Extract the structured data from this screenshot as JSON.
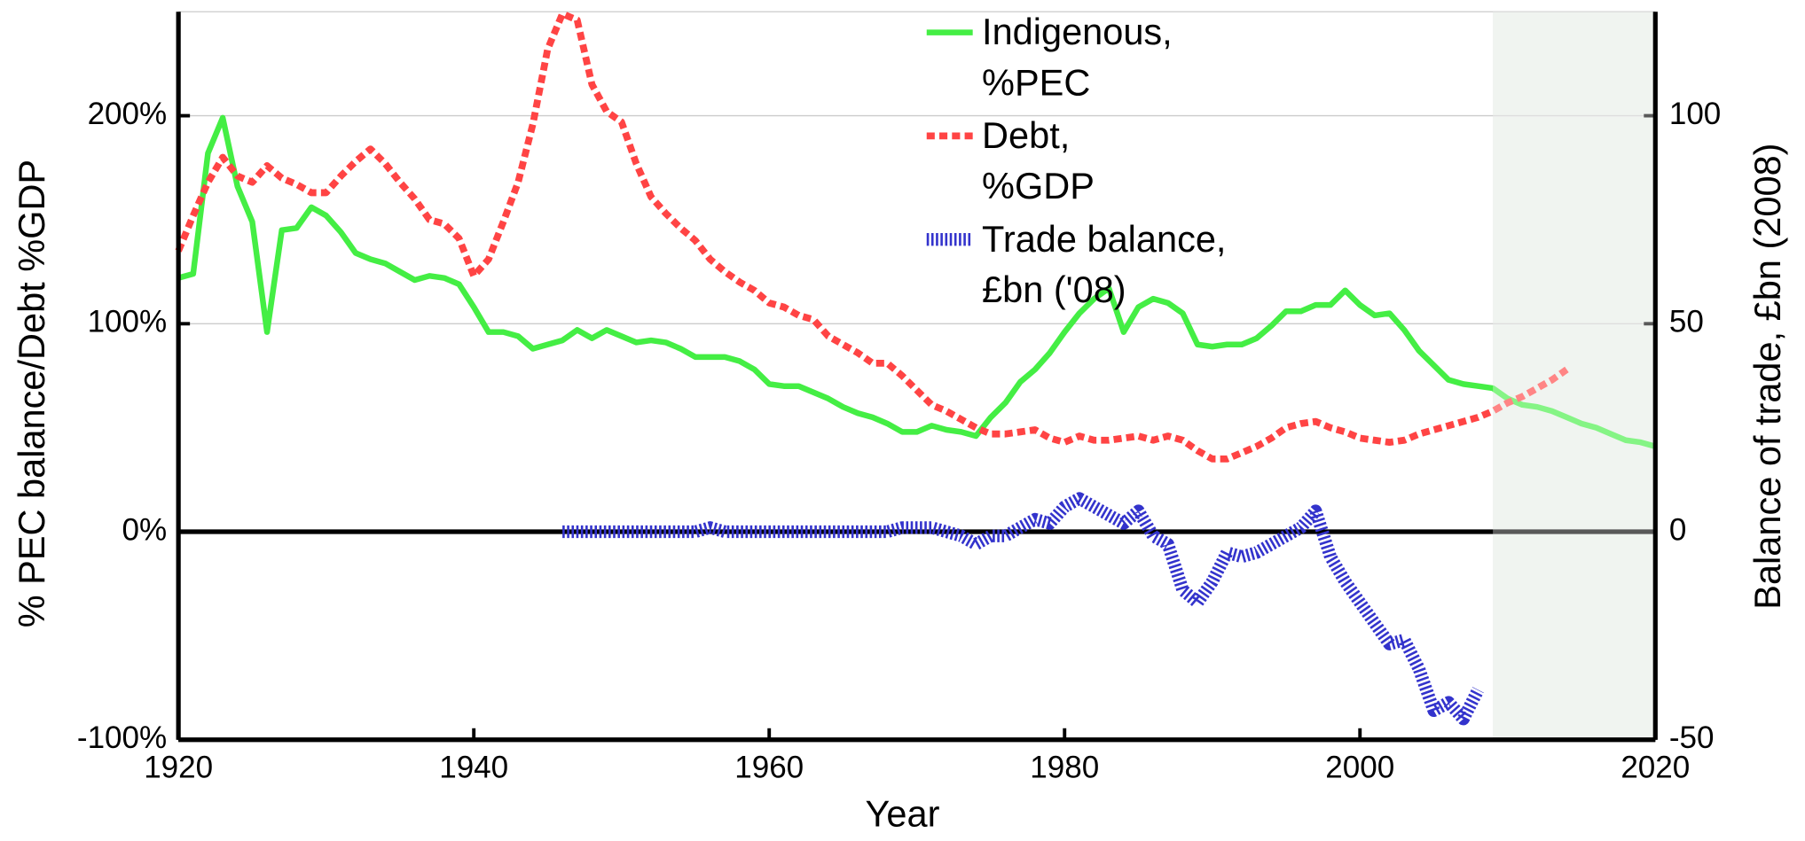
{
  "chart_data": {
    "type": "line",
    "xlabel": "Year",
    "ylabel": "% PEC balance/Debt %GDP",
    "y2label": "Balance of trade, £bn (2008)",
    "xlim": [
      1920,
      2020
    ],
    "xticks": [
      1920,
      1940,
      1960,
      1980,
      2000,
      2020
    ],
    "ylim": [
      -100,
      250
    ],
    "yticks": [
      {
        "value": -100,
        "label": "-100%"
      },
      {
        "value": 0,
        "label": "0%"
      },
      {
        "value": 100,
        "label": "100%"
      },
      {
        "value": 200,
        "label": "200%"
      }
    ],
    "y2lim": [
      -50,
      125
    ],
    "y2ticks": [
      -50,
      0,
      50,
      100
    ],
    "grid": true,
    "legend": "top",
    "shaded_region": [
      2009,
      2020
    ],
    "x": [
      1920,
      1921,
      1922,
      1923,
      1924,
      1925,
      1926,
      1927,
      1928,
      1929,
      1930,
      1931,
      1932,
      1933,
      1934,
      1935,
      1936,
      1937,
      1938,
      1939,
      1940,
      1941,
      1942,
      1943,
      1944,
      1945,
      1946,
      1947,
      1948,
      1949,
      1950,
      1951,
      1952,
      1953,
      1954,
      1955,
      1956,
      1957,
      1958,
      1959,
      1960,
      1961,
      1962,
      1963,
      1964,
      1965,
      1966,
      1967,
      1968,
      1969,
      1970,
      1971,
      1972,
      1973,
      1974,
      1975,
      1976,
      1977,
      1978,
      1979,
      1980,
      1981,
      1982,
      1983,
      1984,
      1985,
      1986,
      1987,
      1988,
      1989,
      1990,
      1991,
      1992,
      1993,
      1994,
      1995,
      1996,
      1997,
      1998,
      1999,
      2000,
      2001,
      2002,
      2003,
      2004,
      2005,
      2006,
      2007,
      2008,
      2009,
      2010,
      2011,
      2012,
      2013,
      2014,
      2015,
      2016,
      2017,
      2018,
      2019,
      2020
    ],
    "series": [
      {
        "name": "Indigenous, %PEC",
        "color": "#44ee44",
        "style": "solid",
        "values": [
          122,
          124,
          182,
          199,
          166,
          149,
          96,
          145,
          146,
          156,
          152,
          144,
          134,
          131,
          129,
          125,
          121,
          123,
          122,
          119,
          108,
          96,
          96,
          94,
          88,
          90,
          92,
          97,
          93,
          97,
          94,
          91,
          92,
          91,
          88,
          84,
          84,
          84,
          82,
          78,
          71,
          70,
          70,
          67,
          64,
          60,
          57,
          55,
          52,
          48,
          48,
          51,
          49,
          48,
          46,
          55,
          62,
          72,
          78,
          86,
          96,
          105,
          112,
          117,
          96,
          108,
          112,
          110,
          105,
          90,
          89,
          90,
          90,
          93,
          99,
          106,
          106,
          109,
          109,
          116,
          109,
          104,
          105,
          97,
          87,
          80,
          73,
          71,
          70,
          69,
          64,
          61,
          60,
          58,
          55,
          52,
          50,
          47,
          44,
          43,
          41
        ]
      },
      {
        "name": "Debt, %GDP",
        "color": "#ff4444",
        "style": "dashed",
        "values": [
          135,
          152,
          168,
          180,
          171,
          168,
          176,
          170,
          167,
          163,
          163,
          171,
          178,
          184,
          177,
          168,
          160,
          150,
          148,
          141,
          123,
          131,
          149,
          168,
          196,
          232,
          249,
          246,
          215,
          202,
          197,
          177,
          161,
          153,
          146,
          140,
          131,
          125,
          120,
          116,
          110,
          108,
          104,
          102,
          94,
          90,
          86,
          81,
          81,
          75,
          68,
          61,
          58,
          54,
          50,
          47,
          47,
          48,
          49,
          45,
          43,
          46,
          44,
          44,
          45,
          46,
          44,
          46,
          44,
          39,
          35,
          35,
          38,
          41,
          45,
          50,
          52,
          53,
          50,
          48,
          45,
          44,
          43,
          44,
          47,
          49,
          51,
          53,
          55,
          58,
          62,
          65,
          69,
          73,
          78,
          null,
          null,
          null,
          null,
          null,
          null
        ]
      },
      {
        "name": "Trade balance, £bn ('08)",
        "color": "#3333cc",
        "style": "hatched",
        "axis": "y2",
        "values": [
          null,
          null,
          null,
          null,
          null,
          null,
          null,
          null,
          null,
          null,
          null,
          null,
          null,
          null,
          null,
          null,
          null,
          null,
          null,
          null,
          null,
          null,
          null,
          null,
          null,
          null,
          0,
          0,
          0,
          0,
          0,
          0,
          0,
          0,
          0,
          0,
          1,
          0,
          0,
          0,
          0,
          0,
          0,
          0,
          0,
          0,
          0,
          0,
          0,
          1,
          1,
          1,
          0,
          -1,
          -3,
          -1,
          -1,
          1,
          3,
          2,
          6,
          8,
          6,
          4,
          2,
          5,
          -1,
          -3,
          -14,
          -17,
          -12,
          -5,
          -6,
          -5,
          -3,
          -1,
          1,
          5,
          -6,
          -12,
          -17,
          -22,
          -27,
          -26,
          -33,
          -43,
          -41,
          -45,
          -38,
          null,
          null,
          null,
          null,
          null,
          null,
          null,
          null,
          null,
          null,
          null,
          null
        ]
      }
    ]
  }
}
